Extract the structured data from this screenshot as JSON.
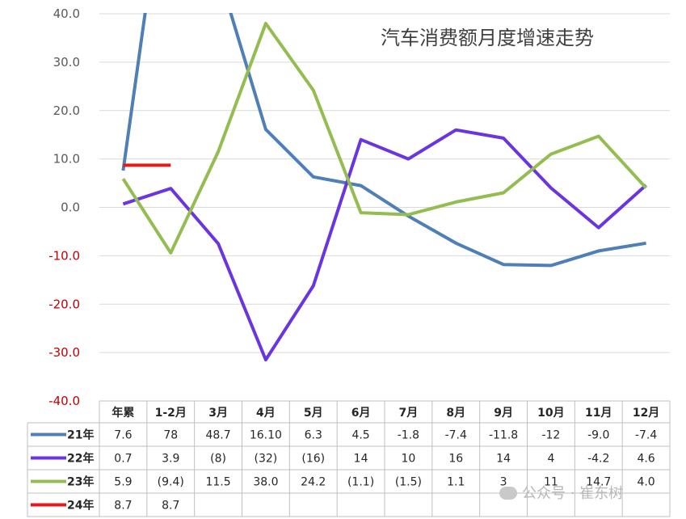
{
  "chart_data": {
    "type": "line",
    "title": "汽车消费额月度增速走势",
    "y_ticks": [
      "40.0",
      "30.0",
      "20.0",
      "10.0",
      "0.0",
      "-10.0",
      "-20.0",
      "-30.0",
      "-40.0"
    ],
    "ylim": [
      -40,
      40
    ],
    "grid": true,
    "legend": "data-table",
    "positive_tick_color": "#595959",
    "negative_tick_color": "#c00000",
    "categories": [
      "年累",
      "1-2月",
      "3月",
      "4月",
      "5月",
      "6月",
      "7月",
      "8月",
      "9月",
      "10月",
      "11月",
      "12月"
    ],
    "series": [
      {
        "name": "21年",
        "color": "#4e7fb6",
        "values": [
          7.6,
          78,
          48.7,
          16.1,
          6.3,
          4.5,
          -1.8,
          -7.4,
          -11.8,
          -12,
          -9.0,
          -7.4
        ],
        "labels": [
          "7.6",
          "78",
          "48.7",
          "16.10",
          "6.3",
          "4.5",
          "-1.8",
          "-7.4",
          "-11.8",
          "-12",
          "-9.0",
          "-7.4"
        ]
      },
      {
        "name": "22年",
        "color": "#6a35e0",
        "values": [
          0.7,
          3.9,
          -7.5,
          -31.5,
          -16.2,
          14,
          10,
          16,
          14.3,
          4,
          -4.2,
          4.6
        ],
        "labels": [
          "0.7",
          "3.9",
          "(8)",
          "(32)",
          "(16)",
          "14",
          "10",
          "16",
          "14",
          "4",
          "-4.2",
          "4.6"
        ]
      },
      {
        "name": "23年",
        "color": "#93bd50",
        "values": [
          5.9,
          -9.4,
          11.5,
          38.0,
          24.2,
          -1.1,
          -1.5,
          1.1,
          3,
          11,
          14.7,
          4.0
        ],
        "labels": [
          "5.9",
          "(9.4)",
          "11.5",
          "38.0",
          "24.2",
          "(1.1)",
          "(1.5)",
          "1.1",
          "3",
          "11",
          "14.7",
          "4.0"
        ]
      },
      {
        "name": "24年",
        "color": "#e41a1a",
        "values": [
          8.7,
          8.7,
          null,
          null,
          null,
          null,
          null,
          null,
          null,
          null,
          null,
          null
        ],
        "labels": [
          "8.7",
          "8.7",
          "",
          "",
          "",
          "",
          "",
          "",
          "",
          "",
          "",
          ""
        ]
      }
    ]
  },
  "watermark": "公众号 · 崔东树"
}
